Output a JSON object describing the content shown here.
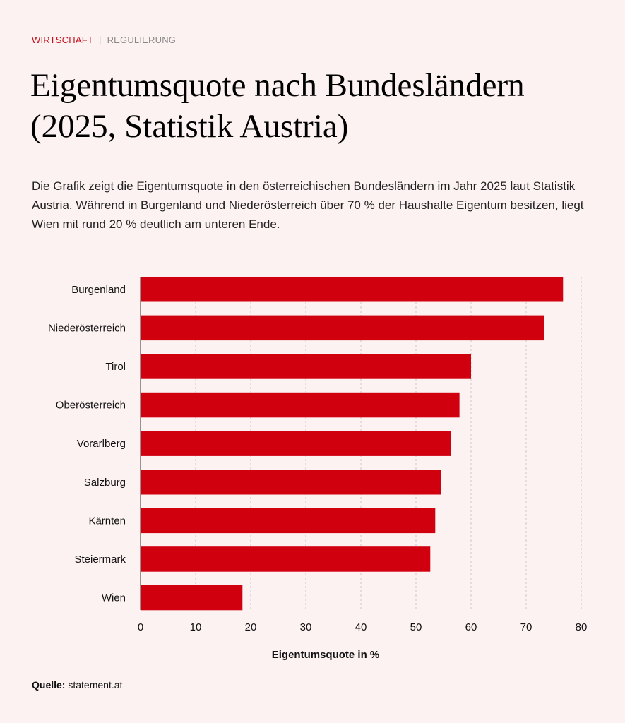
{
  "kicker": {
    "category": "WIRTSCHAFT",
    "separator": "|",
    "subcategory": "REGULIERUNG"
  },
  "title": "Eigentumsquote nach Bundesländern (2025, Statistik Austria)",
  "description": "Die Grafik zeigt die Eigentumsquote in den österreichischen Bundesländern im Jahr 2025 laut Statistik Austria. Während in Burgenland und Niederösterreich über 70 % der Haushalte Eigentum besitzen, liegt Wien mit rund 20 % deutlich am unteren Ende.",
  "source": {
    "label": "Quelle:",
    "value": "statement.at"
  },
  "colors": {
    "bar": "#d0000f",
    "accent": "#c0121e"
  },
  "chart_data": {
    "type": "bar",
    "orientation": "horizontal",
    "categories": [
      "Burgenland",
      "Niederösterreich",
      "Tirol",
      "Oberösterreich",
      "Vorarlberg",
      "Salzburg",
      "Kärnten",
      "Steiermark",
      "Wien"
    ],
    "values": [
      76.7,
      73.3,
      60.0,
      57.9,
      56.3,
      54.6,
      53.5,
      52.6,
      18.5
    ],
    "xlabel": "Eigentumsquote in %",
    "ylabel": "",
    "xlim": [
      0,
      80
    ],
    "xticks": [
      "0",
      "10",
      "20",
      "30",
      "40",
      "50",
      "60",
      "70",
      "80"
    ],
    "grid": true
  }
}
